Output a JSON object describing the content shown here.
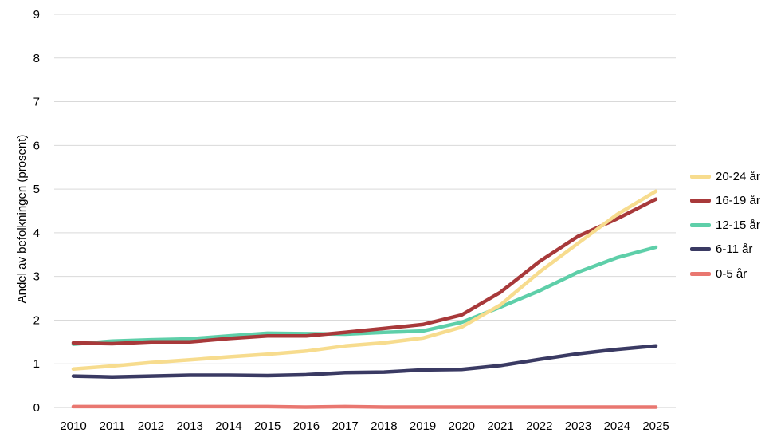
{
  "chart_data": {
    "type": "line",
    "title": "",
    "xlabel": "",
    "ylabel": "Andel av befolkningen (prosent)",
    "ylim": [
      0,
      9
    ],
    "yticks": [
      "0",
      "1",
      "2",
      "3",
      "4",
      "5",
      "6",
      "7",
      "8",
      "9"
    ],
    "grid": true,
    "legend_position": "right",
    "x": [
      "2010",
      "2011",
      "2012",
      "2013",
      "2014",
      "2015",
      "2016",
      "2017",
      "2018",
      "2019",
      "2020",
      "2021",
      "2022",
      "2023",
      "2024",
      "2025"
    ],
    "series": [
      {
        "name": "20-24 år",
        "color": "#F7DC8E",
        "values": [
          0.88,
          0.95,
          1.03,
          1.09,
          1.16,
          1.22,
          1.29,
          1.41,
          1.48,
          1.59,
          1.84,
          2.35,
          3.1,
          3.76,
          4.42,
          4.95
        ]
      },
      {
        "name": "16-19 år",
        "color": "#A8393A",
        "values": [
          1.48,
          1.46,
          1.5,
          1.5,
          1.58,
          1.64,
          1.64,
          1.72,
          1.81,
          1.9,
          2.12,
          2.64,
          3.34,
          3.92,
          4.32,
          4.77
        ]
      },
      {
        "name": "12-15 år",
        "color": "#5ECFA9",
        "values": [
          1.45,
          1.52,
          1.55,
          1.57,
          1.64,
          1.7,
          1.69,
          1.68,
          1.72,
          1.75,
          1.95,
          2.3,
          2.67,
          3.1,
          3.43,
          3.67
        ]
      },
      {
        "name": "6-11 år",
        "color": "#3A3A63",
        "values": [
          0.72,
          0.7,
          0.72,
          0.74,
          0.74,
          0.73,
          0.75,
          0.8,
          0.81,
          0.86,
          0.87,
          0.96,
          1.1,
          1.23,
          1.33,
          1.41
        ]
      },
      {
        "name": "0-5 år",
        "color": "#E97770",
        "values": [
          0.02,
          0.02,
          0.02,
          0.02,
          0.02,
          0.02,
          0.01,
          0.02,
          0.01,
          0.01,
          0.01,
          0.01,
          0.01,
          0.01,
          0.01,
          0.01
        ]
      }
    ]
  }
}
